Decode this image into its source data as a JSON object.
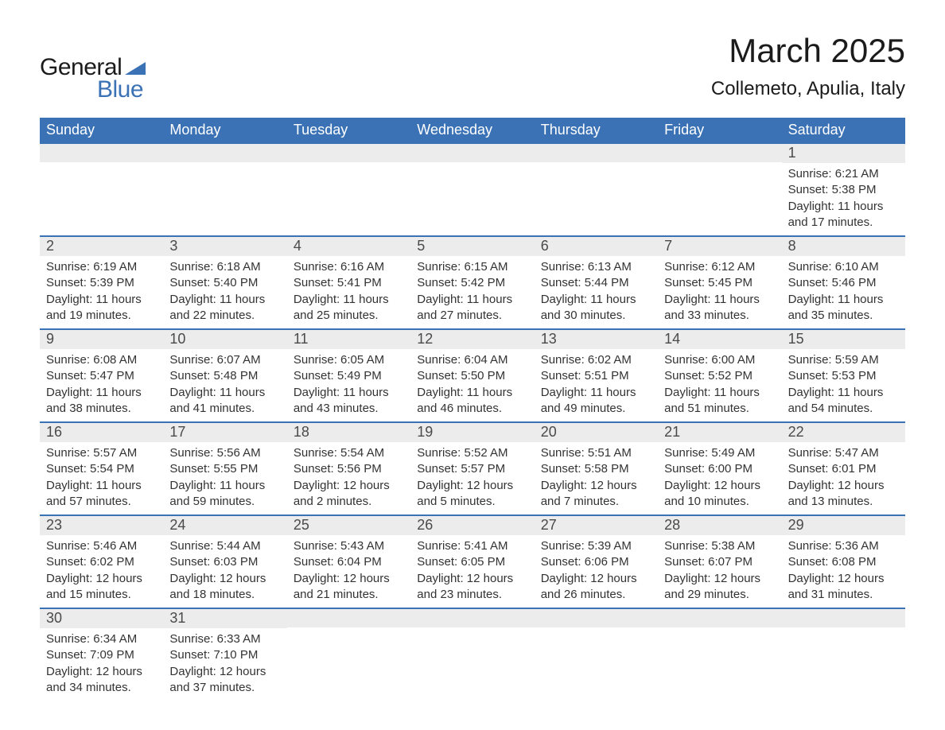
{
  "logo": {
    "text_general": "General",
    "text_blue": "Blue",
    "icon_color": "#3a72b5"
  },
  "header": {
    "title": "March 2025",
    "location": "Collemeto, Apulia, Italy"
  },
  "colors": {
    "header_bg": "#3a72b5",
    "header_text": "#ffffff",
    "daynum_bg": "#ececec",
    "row_border": "#3a72b5",
    "body_text": "#333333"
  },
  "days_of_week": [
    "Sunday",
    "Monday",
    "Tuesday",
    "Wednesday",
    "Thursday",
    "Friday",
    "Saturday"
  ],
  "weeks": [
    [
      {
        "n": "",
        "sunrise": "",
        "sunset": "",
        "daylight1": "",
        "daylight2": ""
      },
      {
        "n": "",
        "sunrise": "",
        "sunset": "",
        "daylight1": "",
        "daylight2": ""
      },
      {
        "n": "",
        "sunrise": "",
        "sunset": "",
        "daylight1": "",
        "daylight2": ""
      },
      {
        "n": "",
        "sunrise": "",
        "sunset": "",
        "daylight1": "",
        "daylight2": ""
      },
      {
        "n": "",
        "sunrise": "",
        "sunset": "",
        "daylight1": "",
        "daylight2": ""
      },
      {
        "n": "",
        "sunrise": "",
        "sunset": "",
        "daylight1": "",
        "daylight2": ""
      },
      {
        "n": "1",
        "sunrise": "Sunrise: 6:21 AM",
        "sunset": "Sunset: 5:38 PM",
        "daylight1": "Daylight: 11 hours",
        "daylight2": "and 17 minutes."
      }
    ],
    [
      {
        "n": "2",
        "sunrise": "Sunrise: 6:19 AM",
        "sunset": "Sunset: 5:39 PM",
        "daylight1": "Daylight: 11 hours",
        "daylight2": "and 19 minutes."
      },
      {
        "n": "3",
        "sunrise": "Sunrise: 6:18 AM",
        "sunset": "Sunset: 5:40 PM",
        "daylight1": "Daylight: 11 hours",
        "daylight2": "and 22 minutes."
      },
      {
        "n": "4",
        "sunrise": "Sunrise: 6:16 AM",
        "sunset": "Sunset: 5:41 PM",
        "daylight1": "Daylight: 11 hours",
        "daylight2": "and 25 minutes."
      },
      {
        "n": "5",
        "sunrise": "Sunrise: 6:15 AM",
        "sunset": "Sunset: 5:42 PM",
        "daylight1": "Daylight: 11 hours",
        "daylight2": "and 27 minutes."
      },
      {
        "n": "6",
        "sunrise": "Sunrise: 6:13 AM",
        "sunset": "Sunset: 5:44 PM",
        "daylight1": "Daylight: 11 hours",
        "daylight2": "and 30 minutes."
      },
      {
        "n": "7",
        "sunrise": "Sunrise: 6:12 AM",
        "sunset": "Sunset: 5:45 PM",
        "daylight1": "Daylight: 11 hours",
        "daylight2": "and 33 minutes."
      },
      {
        "n": "8",
        "sunrise": "Sunrise: 6:10 AM",
        "sunset": "Sunset: 5:46 PM",
        "daylight1": "Daylight: 11 hours",
        "daylight2": "and 35 minutes."
      }
    ],
    [
      {
        "n": "9",
        "sunrise": "Sunrise: 6:08 AM",
        "sunset": "Sunset: 5:47 PM",
        "daylight1": "Daylight: 11 hours",
        "daylight2": "and 38 minutes."
      },
      {
        "n": "10",
        "sunrise": "Sunrise: 6:07 AM",
        "sunset": "Sunset: 5:48 PM",
        "daylight1": "Daylight: 11 hours",
        "daylight2": "and 41 minutes."
      },
      {
        "n": "11",
        "sunrise": "Sunrise: 6:05 AM",
        "sunset": "Sunset: 5:49 PM",
        "daylight1": "Daylight: 11 hours",
        "daylight2": "and 43 minutes."
      },
      {
        "n": "12",
        "sunrise": "Sunrise: 6:04 AM",
        "sunset": "Sunset: 5:50 PM",
        "daylight1": "Daylight: 11 hours",
        "daylight2": "and 46 minutes."
      },
      {
        "n": "13",
        "sunrise": "Sunrise: 6:02 AM",
        "sunset": "Sunset: 5:51 PM",
        "daylight1": "Daylight: 11 hours",
        "daylight2": "and 49 minutes."
      },
      {
        "n": "14",
        "sunrise": "Sunrise: 6:00 AM",
        "sunset": "Sunset: 5:52 PM",
        "daylight1": "Daylight: 11 hours",
        "daylight2": "and 51 minutes."
      },
      {
        "n": "15",
        "sunrise": "Sunrise: 5:59 AM",
        "sunset": "Sunset: 5:53 PM",
        "daylight1": "Daylight: 11 hours",
        "daylight2": "and 54 minutes."
      }
    ],
    [
      {
        "n": "16",
        "sunrise": "Sunrise: 5:57 AM",
        "sunset": "Sunset: 5:54 PM",
        "daylight1": "Daylight: 11 hours",
        "daylight2": "and 57 minutes."
      },
      {
        "n": "17",
        "sunrise": "Sunrise: 5:56 AM",
        "sunset": "Sunset: 5:55 PM",
        "daylight1": "Daylight: 11 hours",
        "daylight2": "and 59 minutes."
      },
      {
        "n": "18",
        "sunrise": "Sunrise: 5:54 AM",
        "sunset": "Sunset: 5:56 PM",
        "daylight1": "Daylight: 12 hours",
        "daylight2": "and 2 minutes."
      },
      {
        "n": "19",
        "sunrise": "Sunrise: 5:52 AM",
        "sunset": "Sunset: 5:57 PM",
        "daylight1": "Daylight: 12 hours",
        "daylight2": "and 5 minutes."
      },
      {
        "n": "20",
        "sunrise": "Sunrise: 5:51 AM",
        "sunset": "Sunset: 5:58 PM",
        "daylight1": "Daylight: 12 hours",
        "daylight2": "and 7 minutes."
      },
      {
        "n": "21",
        "sunrise": "Sunrise: 5:49 AM",
        "sunset": "Sunset: 6:00 PM",
        "daylight1": "Daylight: 12 hours",
        "daylight2": "and 10 minutes."
      },
      {
        "n": "22",
        "sunrise": "Sunrise: 5:47 AM",
        "sunset": "Sunset: 6:01 PM",
        "daylight1": "Daylight: 12 hours",
        "daylight2": "and 13 minutes."
      }
    ],
    [
      {
        "n": "23",
        "sunrise": "Sunrise: 5:46 AM",
        "sunset": "Sunset: 6:02 PM",
        "daylight1": "Daylight: 12 hours",
        "daylight2": "and 15 minutes."
      },
      {
        "n": "24",
        "sunrise": "Sunrise: 5:44 AM",
        "sunset": "Sunset: 6:03 PM",
        "daylight1": "Daylight: 12 hours",
        "daylight2": "and 18 minutes."
      },
      {
        "n": "25",
        "sunrise": "Sunrise: 5:43 AM",
        "sunset": "Sunset: 6:04 PM",
        "daylight1": "Daylight: 12 hours",
        "daylight2": "and 21 minutes."
      },
      {
        "n": "26",
        "sunrise": "Sunrise: 5:41 AM",
        "sunset": "Sunset: 6:05 PM",
        "daylight1": "Daylight: 12 hours",
        "daylight2": "and 23 minutes."
      },
      {
        "n": "27",
        "sunrise": "Sunrise: 5:39 AM",
        "sunset": "Sunset: 6:06 PM",
        "daylight1": "Daylight: 12 hours",
        "daylight2": "and 26 minutes."
      },
      {
        "n": "28",
        "sunrise": "Sunrise: 5:38 AM",
        "sunset": "Sunset: 6:07 PM",
        "daylight1": "Daylight: 12 hours",
        "daylight2": "and 29 minutes."
      },
      {
        "n": "29",
        "sunrise": "Sunrise: 5:36 AM",
        "sunset": "Sunset: 6:08 PM",
        "daylight1": "Daylight: 12 hours",
        "daylight2": "and 31 minutes."
      }
    ],
    [
      {
        "n": "30",
        "sunrise": "Sunrise: 6:34 AM",
        "sunset": "Sunset: 7:09 PM",
        "daylight1": "Daylight: 12 hours",
        "daylight2": "and 34 minutes."
      },
      {
        "n": "31",
        "sunrise": "Sunrise: 6:33 AM",
        "sunset": "Sunset: 7:10 PM",
        "daylight1": "Daylight: 12 hours",
        "daylight2": "and 37 minutes."
      },
      {
        "n": "",
        "sunrise": "",
        "sunset": "",
        "daylight1": "",
        "daylight2": ""
      },
      {
        "n": "",
        "sunrise": "",
        "sunset": "",
        "daylight1": "",
        "daylight2": ""
      },
      {
        "n": "",
        "sunrise": "",
        "sunset": "",
        "daylight1": "",
        "daylight2": ""
      },
      {
        "n": "",
        "sunrise": "",
        "sunset": "",
        "daylight1": "",
        "daylight2": ""
      },
      {
        "n": "",
        "sunrise": "",
        "sunset": "",
        "daylight1": "",
        "daylight2": ""
      }
    ]
  ]
}
